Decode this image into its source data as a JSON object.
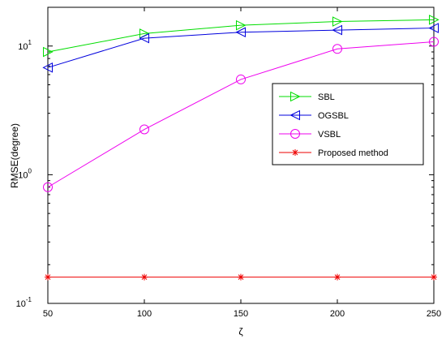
{
  "chart_data": {
    "type": "line",
    "title": "",
    "xlabel": "ζ",
    "ylabel": "RMSE(degree)",
    "x": [
      50,
      100,
      150,
      200,
      250
    ],
    "xlim": [
      50,
      250
    ],
    "ylim": [
      0.1,
      20
    ],
    "yscale": "log",
    "grid": false,
    "legend_position": "right",
    "x_ticks": [
      "50",
      "100",
      "150",
      "200",
      "250"
    ],
    "y_ticks": [
      {
        "base": "10",
        "exp": "-1",
        "value": 0.1
      },
      {
        "base": "10",
        "exp": "0",
        "value": 1
      },
      {
        "base": "10",
        "exp": "1",
        "value": 10
      }
    ],
    "series": [
      {
        "name": "SBL",
        "color": "#00dd00",
        "marker": "triangle-right",
        "values": [
          9.0,
          12.5,
          14.5,
          15.5,
          16.0
        ]
      },
      {
        "name": "OGSBL",
        "color": "#0000dd",
        "marker": "triangle-left",
        "values": [
          6.8,
          11.5,
          12.8,
          13.3,
          13.8
        ]
      },
      {
        "name": "VSBL",
        "color": "#ee00ee",
        "marker": "circle",
        "values": [
          0.8,
          2.25,
          5.5,
          9.5,
          10.8
        ]
      },
      {
        "name": "Proposed method",
        "color": "#ee0000",
        "marker": "asterisk",
        "values": [
          0.16,
          0.16,
          0.16,
          0.16,
          0.16
        ]
      }
    ]
  }
}
